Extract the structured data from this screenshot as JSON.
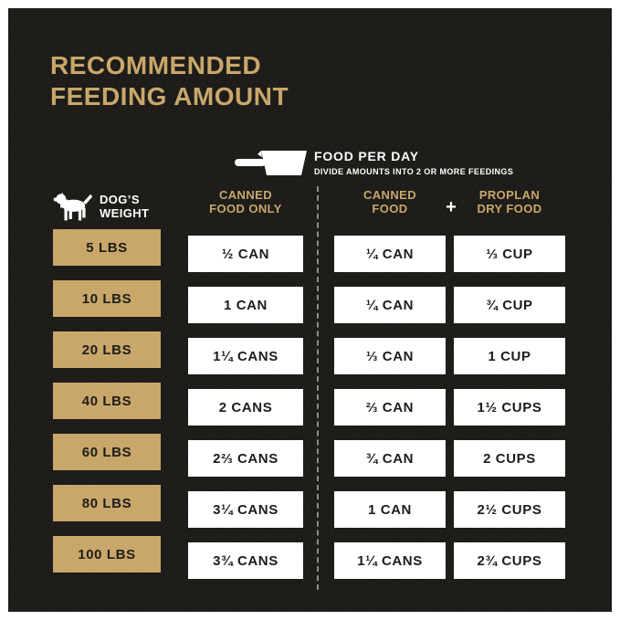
{
  "colors": {
    "background": "#1d1c19",
    "accent": "#c9a76a",
    "cell_text": "#1d1c19",
    "white": "#ffffff"
  },
  "title": {
    "line1": "RECOMMENDED",
    "line2": "FEEDING AMOUNT"
  },
  "food_per_day": {
    "heading": "FOOD PER DAY",
    "note": "DIVIDE AMOUNTS INTO 2 OR MORE FEEDINGS"
  },
  "headers": {
    "weight_line1": "DOG’S",
    "weight_line2": "WEIGHT",
    "canned_only_line1": "CANNED",
    "canned_only_line2": "FOOD ONLY",
    "canned_line1": "CANNED",
    "canned_line2": "FOOD",
    "plus": "+",
    "dry_line1": "PROPLAN",
    "dry_line2": "DRY FOOD"
  },
  "icons": {
    "dog": "dog-silhouette-icon",
    "cup": "measuring-cup-icon"
  },
  "chart_data": {
    "type": "table",
    "title": "RECOMMENDED FEEDING AMOUNT",
    "subtitle": "FOOD PER DAY — DIVIDE AMOUNTS INTO 2 OR MORE FEEDINGS",
    "columns": [
      "DOG'S WEIGHT",
      "CANNED FOOD ONLY",
      "CANNED FOOD",
      "PROPLAN DRY FOOD"
    ],
    "rows": [
      [
        "5 LBS",
        "½ CAN",
        "¼ CAN",
        "⅓ CUP"
      ],
      [
        "10 LBS",
        "1 CAN",
        "¼ CAN",
        "¾ CUP"
      ],
      [
        "20 LBS",
        "1¼ CANS",
        "⅓ CAN",
        "1 CUP"
      ],
      [
        "40 LBS",
        "2 CANS",
        "⅔ CAN",
        "1½ CUPS"
      ],
      [
        "60 LBS",
        "2⅔ CANS",
        "¾ CAN",
        "2 CUPS"
      ],
      [
        "80 LBS",
        "3¼ CANS",
        "1 CAN",
        "2½ CUPS"
      ],
      [
        "100 LBS",
        "3¾ CANS",
        "1¼ CANS",
        "2¾ CUPS"
      ]
    ]
  }
}
